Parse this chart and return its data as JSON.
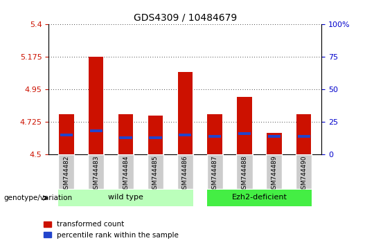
{
  "title": "GDS4309 / 10484679",
  "samples": [
    "GSM744482",
    "GSM744483",
    "GSM744484",
    "GSM744485",
    "GSM744486",
    "GSM744487",
    "GSM744488",
    "GSM744489",
    "GSM744490"
  ],
  "transformed_count": [
    4.78,
    5.175,
    4.78,
    4.77,
    5.07,
    4.78,
    4.9,
    4.65,
    4.78
  ],
  "percentile_rank": [
    15,
    18,
    13,
    13,
    15,
    14,
    16,
    14,
    14
  ],
  "ylim": [
    4.5,
    5.4
  ],
  "yticks": [
    4.5,
    4.725,
    4.95,
    5.175,
    5.4
  ],
  "ytick_labels": [
    "4.5",
    "4.725",
    "4.95",
    "5.175",
    "5.4"
  ],
  "right_yticks": [
    0,
    25,
    50,
    75,
    100
  ],
  "right_ytick_labels": [
    "0",
    "25",
    "50",
    "75",
    "100%"
  ],
  "bar_color": "#cc1100",
  "percentile_color": "#2244cc",
  "bar_width": 0.5,
  "groups": [
    {
      "label": "wild type",
      "start": 0,
      "end": 4,
      "color": "#bbffbb"
    },
    {
      "label": "Ezh2-deficient",
      "start": 5,
      "end": 8,
      "color": "#44ee44"
    }
  ],
  "group_label_prefix": "genotype/variation",
  "legend_items": [
    {
      "label": "transformed count",
      "color": "#cc1100"
    },
    {
      "label": "percentile rank within the sample",
      "color": "#2244cc"
    }
  ],
  "left_tick_color": "#cc1100",
  "right_tick_color": "#0000cc",
  "xticklabel_bg": "#cccccc"
}
